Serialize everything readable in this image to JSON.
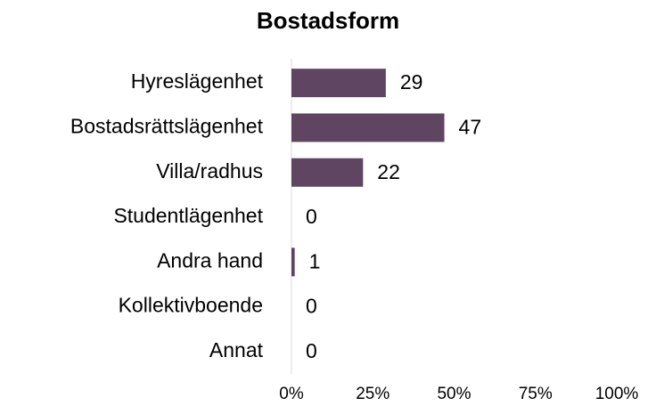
{
  "chart_data": {
    "type": "bar",
    "orientation": "horizontal",
    "title": "Bostadsform",
    "categories": [
      "Hyreslägenhet",
      "Bostadsrättslägenhet",
      "Villa/radhus",
      "Studentlägenhet",
      "Andra hand",
      "Kollektivboende",
      "Annat"
    ],
    "values": [
      29,
      47,
      22,
      0,
      1,
      0,
      0
    ],
    "color": "#604563",
    "xlim": [
      0,
      100
    ],
    "xticks": [
      {
        "value": 0,
        "label": "0%"
      },
      {
        "value": 25,
        "label": "25%"
      },
      {
        "value": 50,
        "label": "50%"
      },
      {
        "value": 75,
        "label": "75%"
      },
      {
        "value": 100,
        "label": "100%"
      }
    ],
    "grid": false
  }
}
